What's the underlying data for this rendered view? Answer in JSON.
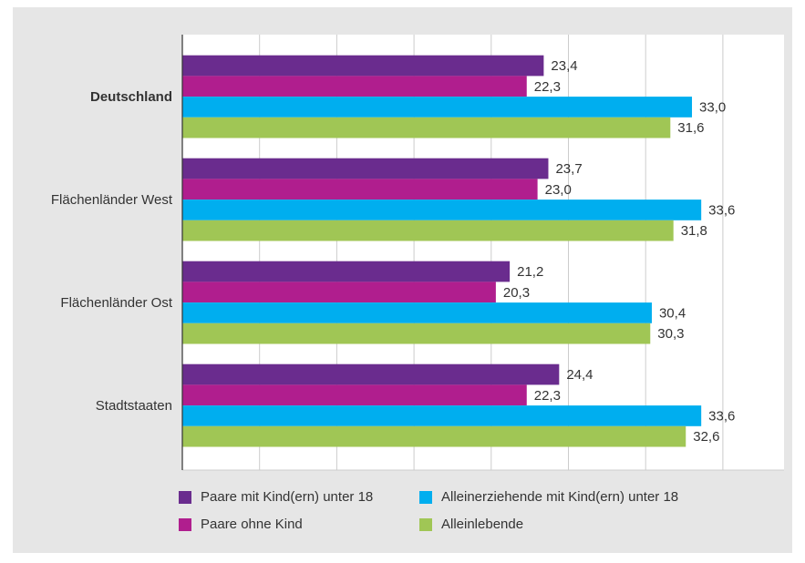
{
  "chart_data": {
    "type": "bar",
    "orientation": "horizontal",
    "title": "",
    "xlabel": "",
    "ylabel": "",
    "categories": [
      "Deutschland",
      "Flächenländer West",
      "Flächenländer Ost",
      "Stadtstaaten"
    ],
    "bold_categories": [
      "Deutschland"
    ],
    "series": [
      {
        "name": "Paare mit Kind(ern) unter 18",
        "color": "#6a2c8e",
        "values": [
          23.4,
          23.7,
          21.2,
          24.4
        ],
        "labels": [
          "23,4",
          "23,7",
          "21,2",
          "24,4"
        ]
      },
      {
        "name": "Paare ohne Kind",
        "color": "#b01e8e",
        "values": [
          22.3,
          23.0,
          20.3,
          22.3
        ],
        "labels": [
          "22,3",
          "23,0",
          "20,3",
          "22,3"
        ]
      },
      {
        "name": "Alleinerziehende mit Kind(ern) unter 18",
        "color": "#00aeef",
        "values": [
          33.0,
          33.6,
          30.4,
          33.6
        ],
        "labels": [
          "33,0",
          "33,6",
          "30,4",
          "33,6"
        ]
      },
      {
        "name": "Alleinlebende",
        "color": "#a0c655",
        "values": [
          31.6,
          31.8,
          30.3,
          32.6
        ],
        "labels": [
          "31,6",
          "31,8",
          "30,3",
          "32,6"
        ]
      }
    ],
    "xlim": [
      0,
      35
    ],
    "grid": true,
    "legend_position": "bottom",
    "colors": {
      "background": "#e6e6e6",
      "plot_background": "#ffffff",
      "grid": "#cccccc",
      "text": "#333333"
    }
  }
}
